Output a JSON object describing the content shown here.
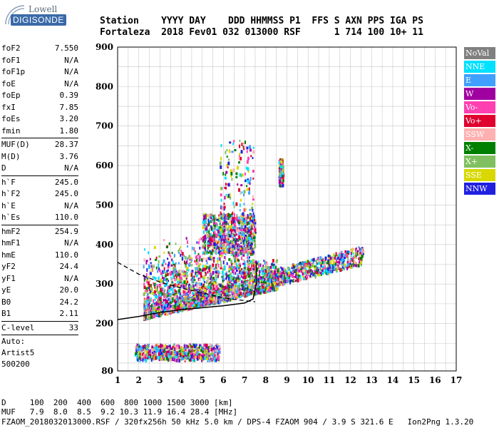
{
  "logo": {
    "line1": "Lowell",
    "line2": "DIGISONDE"
  },
  "header": {
    "labels": "Station    YYYY DAY    DDD HHMMSS P1  FFS S AXN PPS IGA PS",
    "values": "Fortaleza  2018 Fev01 032 013000 RSF      1 714 100 10+ 11"
  },
  "params": {
    "group1": [
      {
        "k": "foF2",
        "v": "7.550"
      },
      {
        "k": "foF1",
        "v": "N/A"
      },
      {
        "k": "foF1p",
        "v": "N/A"
      },
      {
        "k": "foE",
        "v": "N/A"
      },
      {
        "k": "foEp",
        "v": "0.39"
      },
      {
        "k": "fxI",
        "v": "7.85"
      },
      {
        "k": "foEs",
        "v": "3.20"
      },
      {
        "k": "fmin",
        "v": "1.80"
      }
    ],
    "group2": [
      {
        "k": "MUF(D)",
        "v": "28.37"
      },
      {
        "k": "M(D)",
        "v": "3.76"
      },
      {
        "k": "D",
        "v": "N/A"
      }
    ],
    "group3": [
      {
        "k": "h`F",
        "v": "245.0"
      },
      {
        "k": "h`F2",
        "v": "245.0"
      },
      {
        "k": "h`E",
        "v": "N/A"
      },
      {
        "k": "h`Es",
        "v": "110.0"
      }
    ],
    "group4": [
      {
        "k": "hmF2",
        "v": "254.9"
      },
      {
        "k": "hmF1",
        "v": "N/A"
      },
      {
        "k": "hmE",
        "v": "110.0"
      },
      {
        "k": "yF2",
        "v": "24.4"
      },
      {
        "k": "yF1",
        "v": "N/A"
      },
      {
        "k": "yE",
        "v": "20.0"
      },
      {
        "k": "B0",
        "v": "24.2"
      },
      {
        "k": "B1",
        "v": "2.11"
      }
    ],
    "group5": [
      {
        "k": "C-level",
        "v": "33"
      }
    ]
  },
  "auto": {
    "line1": "Auto:",
    "line2": "Artist5",
    "line3": "500200"
  },
  "legend": [
    {
      "label": "NoVal",
      "color": "#808080"
    },
    {
      "label": "NNE",
      "color": "#00e0ff"
    },
    {
      "label": "E",
      "color": "#3fa0ff"
    },
    {
      "label": "W",
      "color": "#a000a0"
    },
    {
      "label": "Vo-",
      "color": "#ff40b0"
    },
    {
      "label": "Vo+",
      "color": "#e00030"
    },
    {
      "label": "SSW",
      "color": "#ffb0b0"
    },
    {
      "label": "X-",
      "color": "#008000"
    },
    {
      "label": "X+",
      "color": "#80c060"
    },
    {
      "label": "SSE",
      "color": "#d8d800"
    },
    {
      "label": "NNW",
      "color": "#2020e0"
    }
  ],
  "bottom": {
    "d_row": "D     100  200  400  600  800 1000 1500 3000 [km]",
    "muf_row": "MUF   7.9  8.0  8.5  9.2 10.3 11.9 16.4 28.4 [MHz]",
    "footer": "FZAOM_2018032013000.RSF / 320fx256h 50 kHz 5.0 km / DPS-4 FZAOM 904 / 3.9 S 321.6 E   Ion2Png 1.3.20"
  },
  "chart_data": {
    "type": "scatter",
    "xlim": [
      1,
      17
    ],
    "ylim": [
      80,
      900
    ],
    "x_ticks": [
      1,
      2,
      3,
      4,
      5,
      6,
      7,
      8,
      9,
      10,
      11,
      12,
      13,
      14,
      15,
      16,
      17
    ],
    "y_ticks": [
      80,
      200,
      300,
      400,
      500,
      600,
      700,
      800,
      900
    ],
    "grid": true,
    "legend_placement": "right",
    "clusters": [
      {
        "name": "F-trace main",
        "x_range": [
          2.2,
          8.5
        ],
        "y_range": [
          210,
          420
        ],
        "density": "high"
      },
      {
        "name": "F-trace upper",
        "x_range": [
          5.0,
          7.5
        ],
        "y_range": [
          380,
          480
        ],
        "density": "medium"
      },
      {
        "name": "F-trace tail",
        "x_range": [
          8.0,
          12.6
        ],
        "y_range": [
          290,
          380
        ],
        "density": "medium"
      },
      {
        "name": "Es layer",
        "x_range": [
          1.8,
          5.8
        ],
        "y_range": [
          110,
          150
        ],
        "density": "medium"
      },
      {
        "name": "Spread-F upper",
        "x_range": [
          5.8,
          7.4
        ],
        "y_range": [
          450,
          670
        ],
        "density": "low"
      },
      {
        "name": "Isolated 8.7 MHz",
        "x_range": [
          8.6,
          8.8
        ],
        "y_range": [
          550,
          620
        ],
        "density": "low"
      }
    ],
    "profile_curve": [
      {
        "x": 1.0,
        "y": 210
      },
      {
        "x": 2.0,
        "y": 218
      },
      {
        "x": 3.0,
        "y": 228
      },
      {
        "x": 4.0,
        "y": 235
      },
      {
        "x": 5.0,
        "y": 240
      },
      {
        "x": 6.0,
        "y": 245
      },
      {
        "x": 7.0,
        "y": 252
      },
      {
        "x": 7.4,
        "y": 262
      },
      {
        "x": 7.55,
        "y": 300
      },
      {
        "x": 7.55,
        "y": 355
      }
    ],
    "dashed_curve": [
      {
        "x": 1.0,
        "y": 355
      },
      {
        "x": 2.0,
        "y": 325
      },
      {
        "x": 3.0,
        "y": 305
      },
      {
        "x": 4.0,
        "y": 290
      },
      {
        "x": 5.0,
        "y": 278
      },
      {
        "x": 6.0,
        "y": 265
      },
      {
        "x": 7.0,
        "y": 258
      },
      {
        "x": 7.5,
        "y": 255
      }
    ]
  }
}
